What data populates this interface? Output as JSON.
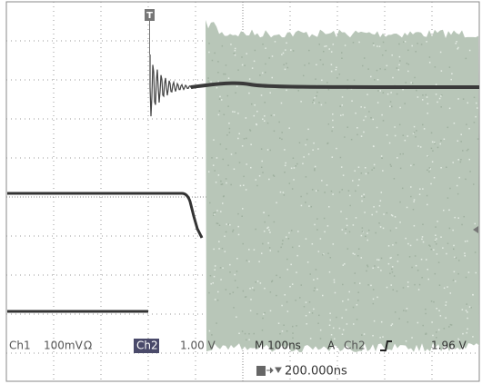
{
  "trigger_marker": "T",
  "readout": {
    "ch1_label": "Ch1",
    "ch1_scale": "100mV",
    "ch1_coupling": "Ω",
    "ch2_label": "Ch2",
    "ch2_scale": "1.00 V",
    "timebase": "M 100ns",
    "trigger_mode": "A",
    "trigger_source": "Ch2",
    "trigger_level": "1.96 V",
    "trigger_position": "200.000ns"
  }
}
